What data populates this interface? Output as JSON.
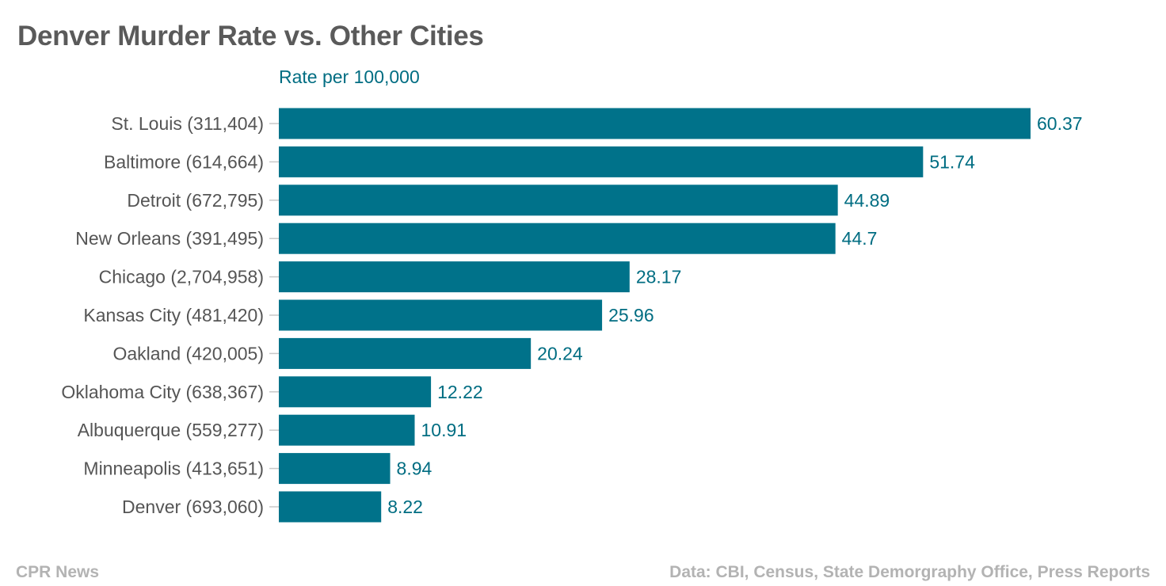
{
  "colors": {
    "bar": "#00728a",
    "value_label": "#006d82",
    "category_label": "#555555",
    "tick": "#c8c8c8",
    "title": "#5a5a5a",
    "footer": "#b3b3b3"
  },
  "chart_data": {
    "type": "bar",
    "orientation": "horizontal",
    "title": "Denver Murder Rate vs. Other Cities",
    "subtitle": "Rate per 100,000",
    "categories": [
      "St. Louis (311,404)",
      "Baltimore (614,664)",
      "Detroit (672,795)",
      "New Orleans (391,495)",
      "Chicago (2,704,958)",
      "Kansas City (481,420)",
      "Oakland (420,005)",
      "Oklahoma City (638,367)",
      "Albuquerque (559,277)",
      "Minneapolis (413,651)",
      "Denver (693,060)"
    ],
    "values": [
      60.37,
      51.74,
      44.89,
      44.7,
      28.17,
      25.96,
      20.24,
      12.22,
      10.91,
      8.94,
      8.22
    ],
    "value_labels": [
      "60.37",
      "51.74",
      "44.89",
      "44.7",
      "28.17",
      "25.96",
      "20.24",
      "12.22",
      "10.91",
      "8.94",
      "8.22"
    ],
    "xlim": [
      0,
      60.37
    ],
    "xlabel": "",
    "ylabel": "",
    "grid": false,
    "legend": "none"
  },
  "footer": {
    "source_left": "CPR News",
    "source_right": "Data: CBI, Census, State Demorgraphy Office, Press Reports"
  }
}
